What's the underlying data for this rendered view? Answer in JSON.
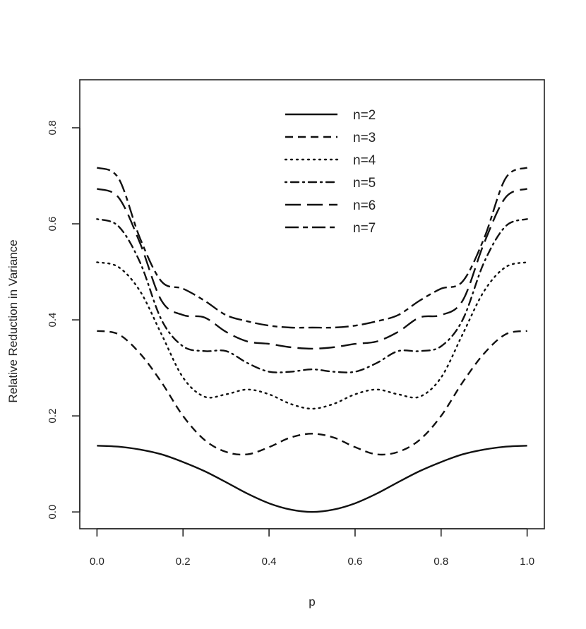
{
  "chart_data": {
    "type": "line",
    "title": "",
    "xlabel": "p",
    "ylabel": "Relative Reduction in Variance",
    "xlim": [
      -0.04,
      1.04
    ],
    "ylim": [
      -0.035,
      0.9
    ],
    "xticks": [
      0.0,
      0.2,
      0.4,
      0.6,
      0.8,
      1.0
    ],
    "xtick_labels": [
      "0.0",
      "0.2",
      "0.4",
      "0.6",
      "0.8",
      "1.0"
    ],
    "yticks": [
      0.0,
      0.2,
      0.4,
      0.6,
      0.8
    ],
    "ytick_labels": [
      "0.0",
      "0.2",
      "0.4",
      "0.6",
      "0.8"
    ],
    "grid": false,
    "legend_position": "top-center",
    "x": [
      0.0,
      0.05,
      0.1,
      0.15,
      0.2,
      0.25,
      0.3,
      0.35,
      0.4,
      0.45,
      0.5,
      0.55,
      0.6,
      0.65,
      0.7,
      0.75,
      0.8,
      0.85,
      0.9,
      0.95,
      1.0
    ],
    "series": [
      {
        "name": "n=2",
        "dash": "solid",
        "values": [
          0.138,
          0.136,
          0.13,
          0.12,
          0.104,
          0.085,
          0.062,
          0.038,
          0.018,
          0.005,
          0.0,
          0.005,
          0.018,
          0.038,
          0.062,
          0.085,
          0.104,
          0.12,
          0.13,
          0.136,
          0.138
        ]
      },
      {
        "name": "n=3",
        "dash": "dashed",
        "values": [
          0.377,
          0.37,
          0.33,
          0.27,
          0.2,
          0.15,
          0.125,
          0.12,
          0.135,
          0.155,
          0.163,
          0.155,
          0.135,
          0.12,
          0.125,
          0.15,
          0.2,
          0.27,
          0.33,
          0.37,
          0.377
        ]
      },
      {
        "name": "n=4",
        "dash": "dotted",
        "values": [
          0.52,
          0.51,
          0.46,
          0.37,
          0.28,
          0.24,
          0.245,
          0.255,
          0.245,
          0.225,
          0.215,
          0.225,
          0.245,
          0.255,
          0.245,
          0.24,
          0.28,
          0.37,
          0.46,
          0.51,
          0.52
        ]
      },
      {
        "name": "n=5",
        "dash": "dot-dash",
        "values": [
          0.61,
          0.595,
          0.52,
          0.4,
          0.345,
          0.335,
          0.335,
          0.31,
          0.292,
          0.292,
          0.297,
          0.292,
          0.292,
          0.31,
          0.335,
          0.335,
          0.345,
          0.4,
          0.52,
          0.595,
          0.61
        ]
      },
      {
        "name": "n=6",
        "dash": "long-dash",
        "values": [
          0.673,
          0.655,
          0.56,
          0.44,
          0.41,
          0.405,
          0.375,
          0.355,
          0.35,
          0.343,
          0.34,
          0.343,
          0.35,
          0.355,
          0.375,
          0.405,
          0.41,
          0.44,
          0.56,
          0.655,
          0.673
        ]
      },
      {
        "name": "n=7",
        "dash": "two-dash",
        "values": [
          0.717,
          0.695,
          0.57,
          0.48,
          0.465,
          0.44,
          0.41,
          0.397,
          0.388,
          0.384,
          0.384,
          0.384,
          0.388,
          0.397,
          0.41,
          0.44,
          0.465,
          0.48,
          0.57,
          0.695,
          0.717
        ]
      }
    ]
  }
}
